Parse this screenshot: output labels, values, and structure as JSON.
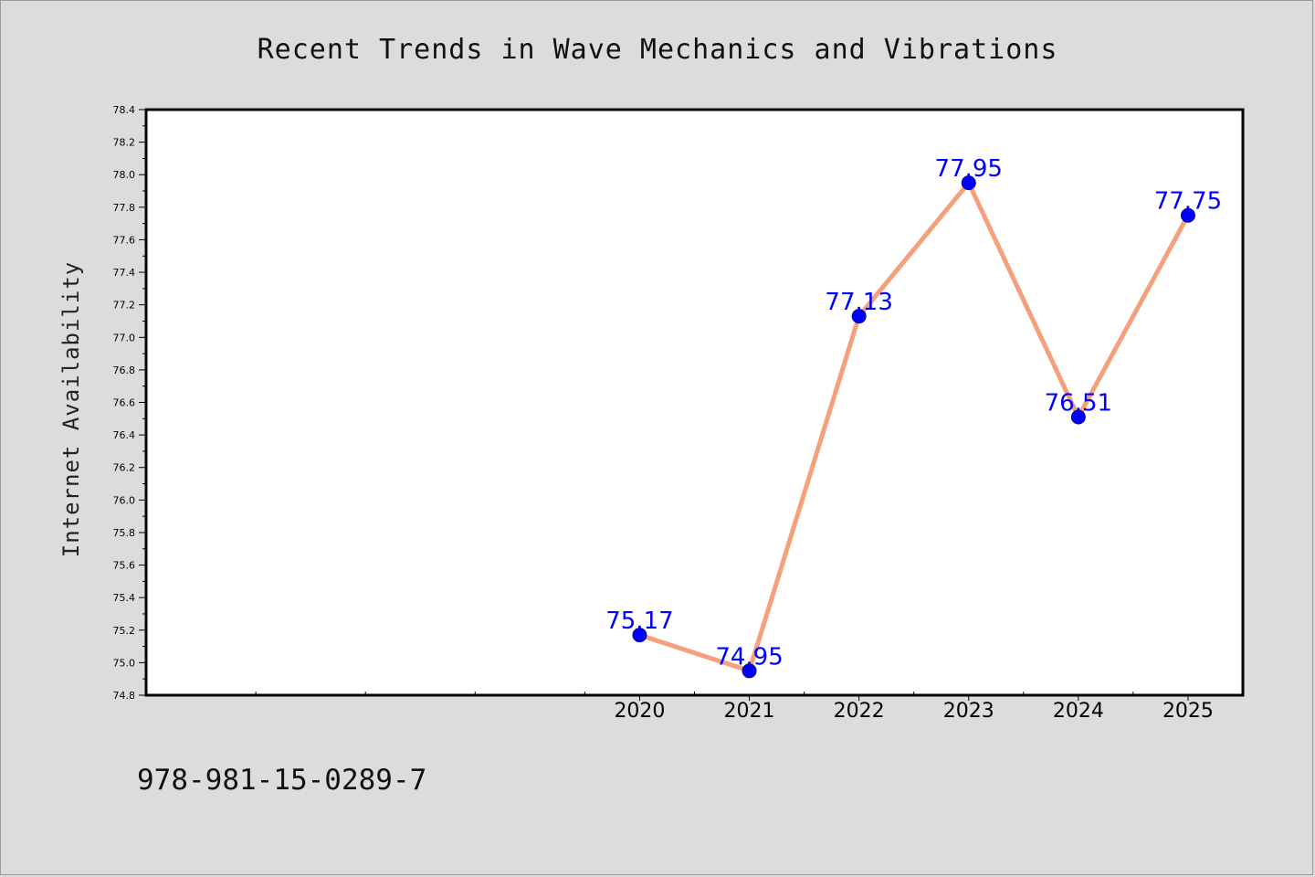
{
  "chart_data": {
    "type": "line",
    "title": "Recent Trends in Wave Mechanics and Vibrations",
    "xlabel": "",
    "ylabel": "Internet Availability",
    "x": [
      "2020",
      "2021",
      "2022",
      "2023",
      "2024",
      "2025"
    ],
    "series": [
      {
        "values": [
          75.17,
          74.95,
          77.13,
          77.95,
          76.51,
          77.75
        ],
        "data_labels": [
          "75.17",
          "74.95",
          "77.13",
          "77.95",
          "76.51",
          "77.75"
        ]
      }
    ],
    "ylim": [
      74.8,
      78.4
    ],
    "yticks": [
      "74.8",
      "75.0",
      "75.2",
      "75.4",
      "75.6",
      "75.8",
      "76.0",
      "76.2",
      "76.4",
      "76.6",
      "76.8",
      "77.0",
      "77.2",
      "77.4",
      "77.6",
      "77.8",
      "78.0",
      "78.2",
      "78.4"
    ],
    "xticks": [
      "2020",
      "2021",
      "2022",
      "2023",
      "2024",
      "2025"
    ],
    "xlim": [
      2015.5,
      2025.5
    ],
    "grid": false,
    "legend": "none",
    "colors": {
      "line": "#f4a07a",
      "marker": "#0000ff",
      "marker_edge": "#00008b",
      "data_label": "#0000ff",
      "plot_background": "#ffffff",
      "figure_background": "#dcdcdc"
    }
  },
  "footer": {
    "isbn": "978-981-15-0289-7"
  }
}
